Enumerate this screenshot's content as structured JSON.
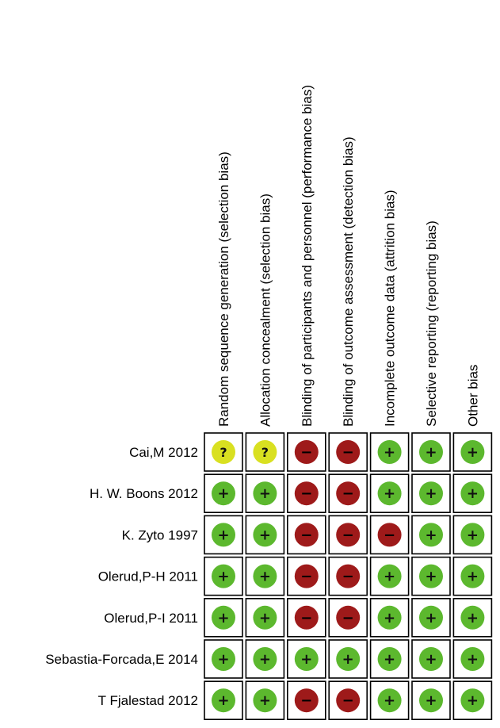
{
  "chart_data": {
    "type": "table",
    "title": "",
    "domains": [
      "Random sequence generation (selection bias)",
      "Allocation concealment (selection bias)",
      "Blinding of participants and personnel (performance bias)",
      "Blinding of outcome assessment (detection bias)",
      "Incomplete outcome data (attrition bias)",
      "Selective reporting (reporting bias)",
      "Other bias"
    ],
    "studies": [
      "Cai,M 2012",
      "H. W. Boons 2012",
      "K. Zyto 1997",
      "Olerud,P-H 2011",
      "Olerud,P-I 2011",
      "Sebastia-Forcada,E 2014",
      "T Fjalestad 2012"
    ],
    "judgements": [
      [
        "unclear",
        "unclear",
        "high",
        "high",
        "low",
        "low",
        "low"
      ],
      [
        "low",
        "low",
        "high",
        "high",
        "low",
        "low",
        "low"
      ],
      [
        "low",
        "low",
        "high",
        "high",
        "high",
        "low",
        "low"
      ],
      [
        "low",
        "low",
        "high",
        "high",
        "low",
        "low",
        "low"
      ],
      [
        "low",
        "low",
        "high",
        "high",
        "low",
        "low",
        "low"
      ],
      [
        "low",
        "low",
        "low",
        "low",
        "low",
        "low",
        "low"
      ],
      [
        "low",
        "low",
        "high",
        "high",
        "low",
        "low",
        "low"
      ]
    ],
    "symbols": {
      "low": "+",
      "high": "−",
      "unclear": "?"
    },
    "colors": {
      "low": "#5cb82e",
      "high": "#9e1a1a",
      "unclear": "#d9e021"
    }
  }
}
